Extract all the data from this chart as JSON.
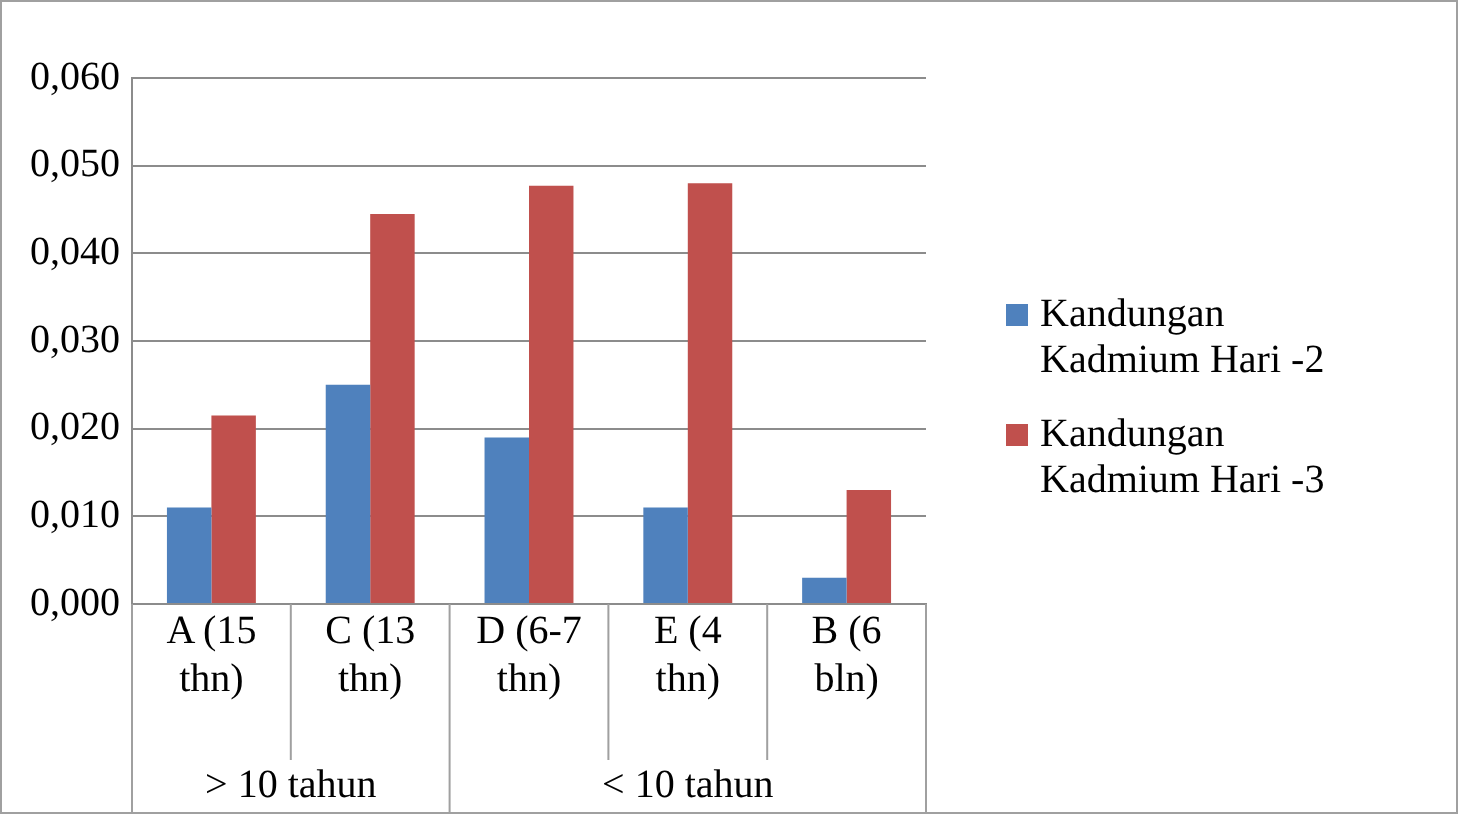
{
  "chart_data": {
    "type": "bar",
    "categories": [
      "A (15 thn)",
      "C (13 thn)",
      "D (6-7 thn)",
      "E (4 thn)",
      "B (6 bln)"
    ],
    "series": [
      {
        "name": "Kandungan Kadmium Hari -2",
        "color": "#4f81bd",
        "values": [
          0.011,
          0.025,
          0.019,
          0.011,
          0.003
        ]
      },
      {
        "name": "Kandungan Kadmium Hari -3",
        "color": "#c0504d",
        "values": [
          0.0215,
          0.0445,
          0.0477,
          0.048,
          0.013
        ]
      }
    ],
    "ylim": [
      0,
      0.06
    ],
    "yticks": [
      {
        "value": 0,
        "label": "0,000"
      },
      {
        "value": 0.01,
        "label": "0,010"
      },
      {
        "value": 0.02,
        "label": "0,020"
      },
      {
        "value": 0.03,
        "label": "0,030"
      },
      {
        "value": 0.04,
        "label": "0,040"
      },
      {
        "value": 0.05,
        "label": "0,050"
      },
      {
        "value": 0.06,
        "label": "0,060"
      }
    ],
    "annotations": [
      "> 10 tahun",
      "< 10 tahun"
    ],
    "grid": "y",
    "legend": "right"
  }
}
